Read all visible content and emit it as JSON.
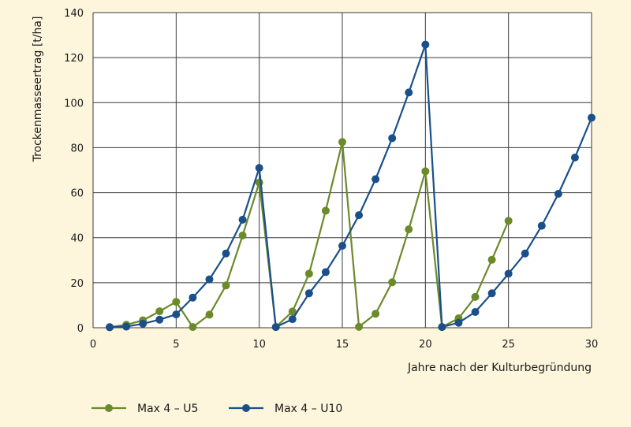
{
  "chart_data": {
    "type": "line",
    "title": "",
    "xlabel": "Jahre nach der Kulturbegründung",
    "ylabel": "Trockenmasseertrag [t/ha]",
    "xlim": [
      0,
      30
    ],
    "ylim": [
      0,
      140
    ],
    "xticks": [
      0,
      5,
      10,
      15,
      20,
      25,
      30
    ],
    "yticks": [
      0,
      20,
      40,
      60,
      80,
      100,
      120,
      140
    ],
    "grid": true,
    "legend_position": "bottom-left",
    "series": [
      {
        "name": "Max 4 – U5",
        "color": "#6b8a2a",
        "x": [
          1,
          2,
          3,
          4,
          5,
          6,
          7,
          8,
          9,
          10,
          11,
          12,
          13,
          14,
          15,
          16,
          17,
          18,
          19,
          20,
          21,
          22,
          23,
          24,
          25
        ],
        "y": [
          0.3,
          1.3,
          3.3,
          7.3,
          11.5,
          0.3,
          5.8,
          18.8,
          41,
          64.5,
          0.3,
          7.2,
          24,
          52,
          82.5,
          0.4,
          6.2,
          20.2,
          43.7,
          69.5,
          0.3,
          4.2,
          13.7,
          30.2,
          47.5
        ]
      },
      {
        "name": "Max 4 – U10",
        "color": "#1a4f8a",
        "x": [
          1,
          2,
          3,
          4,
          5,
          6,
          7,
          8,
          9,
          10,
          11,
          12,
          13,
          14,
          15,
          16,
          17,
          18,
          19,
          20,
          21,
          22,
          23,
          24,
          25,
          26,
          27,
          28,
          29,
          30
        ],
        "y": [
          0.2,
          0.5,
          1.8,
          3.6,
          5.9,
          13.4,
          21.5,
          33,
          48,
          71,
          0.3,
          3.8,
          15.3,
          24.7,
          36.4,
          50,
          66,
          84.2,
          104.5,
          125.8,
          0.3,
          2.2,
          7,
          15.3,
          24,
          33,
          45.3,
          59.5,
          75.6,
          93.3
        ]
      }
    ]
  }
}
